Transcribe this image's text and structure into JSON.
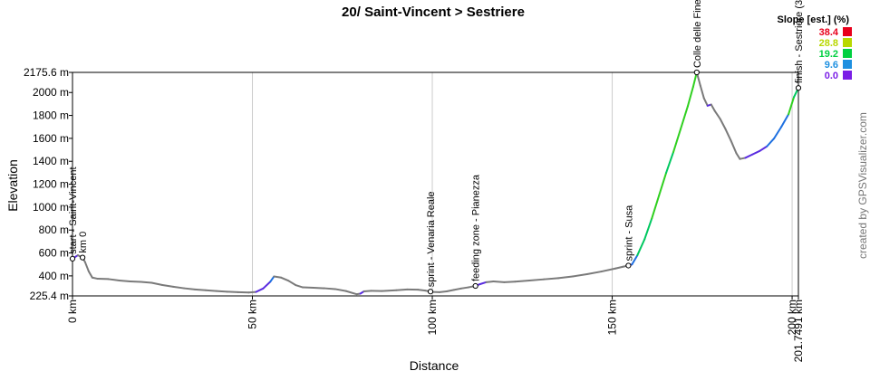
{
  "chart_data": {
    "type": "line",
    "title": "20/ Saint-Vincent > Sestriere",
    "xlabel": "Distance",
    "ylabel": "Elevation",
    "xlim": [
      0,
      201.7491
    ],
    "ylim": [
      225.4,
      2175.6
    ],
    "x_ticks": [
      {
        "value": 0,
        "label": "0 km"
      },
      {
        "value": 50,
        "label": "50 km"
      },
      {
        "value": 100,
        "label": "100 km"
      },
      {
        "value": 150,
        "label": "150 km"
      },
      {
        "value": 200,
        "label": "200 km"
      },
      {
        "value": 201.7491,
        "label": "201.7491 km"
      }
    ],
    "y_ticks": [
      {
        "value": 225.4,
        "label": "225.4 m"
      },
      {
        "value": 400,
        "label": "400 m"
      },
      {
        "value": 600,
        "label": "600 m"
      },
      {
        "value": 800,
        "label": "800 m"
      },
      {
        "value": 1000,
        "label": "1000 m"
      },
      {
        "value": 1200,
        "label": "1200 m"
      },
      {
        "value": 1400,
        "label": "1400 m"
      },
      {
        "value": 1600,
        "label": "1600 m"
      },
      {
        "value": 1800,
        "label": "1800 m"
      },
      {
        "value": 2000,
        "label": "2000 m"
      },
      {
        "value": 2175.6,
        "label": "2175.6 m"
      }
    ],
    "grid_x": [
      50,
      100,
      150,
      200
    ],
    "profile": [
      [
        0,
        550
      ],
      [
        1.5,
        580
      ],
      [
        2.8,
        560
      ],
      [
        3.5,
        520
      ],
      [
        4.5,
        440
      ],
      [
        5.5,
        385
      ],
      [
        7,
        375
      ],
      [
        10,
        372
      ],
      [
        13,
        360
      ],
      [
        16,
        352
      ],
      [
        19,
        348
      ],
      [
        22,
        340
      ],
      [
        25,
        320
      ],
      [
        28,
        305
      ],
      [
        31,
        292
      ],
      [
        34,
        282
      ],
      [
        37,
        275
      ],
      [
        40,
        268
      ],
      [
        43,
        262
      ],
      [
        46,
        258
      ],
      [
        49,
        255
      ],
      [
        51,
        260
      ],
      [
        53,
        290
      ],
      [
        55,
        350
      ],
      [
        56,
        395
      ],
      [
        58,
        385
      ],
      [
        60,
        358
      ],
      [
        62,
        320
      ],
      [
        64,
        300
      ],
      [
        67,
        296
      ],
      [
        70,
        292
      ],
      [
        73,
        285
      ],
      [
        76,
        268
      ],
      [
        79,
        240
      ],
      [
        80,
        245
      ],
      [
        81,
        265
      ],
      [
        83,
        270
      ],
      [
        86,
        268
      ],
      [
        90,
        275
      ],
      [
        93,
        282
      ],
      [
        96,
        280
      ],
      [
        98,
        272
      ],
      [
        100,
        260
      ],
      [
        102,
        258
      ],
      [
        104,
        265
      ],
      [
        106,
        278
      ],
      [
        108,
        290
      ],
      [
        110,
        300
      ],
      [
        112,
        312
      ],
      [
        113,
        325
      ],
      [
        115,
        345
      ],
      [
        117,
        352
      ],
      [
        120,
        345
      ],
      [
        123,
        350
      ],
      [
        127,
        360
      ],
      [
        131,
        370
      ],
      [
        135,
        380
      ],
      [
        139,
        395
      ],
      [
        143,
        415
      ],
      [
        147,
        438
      ],
      [
        151,
        465
      ],
      [
        153,
        480
      ],
      [
        154.5,
        490
      ],
      [
        155.5,
        500
      ],
      [
        157,
        580
      ],
      [
        159,
        720
      ],
      [
        161,
        900
      ],
      [
        163,
        1100
      ],
      [
        165,
        1300
      ],
      [
        167,
        1480
      ],
      [
        169,
        1680
      ],
      [
        171,
        1880
      ],
      [
        172.5,
        2050
      ],
      [
        173.5,
        2175.6
      ],
      [
        174.5,
        2060
      ],
      [
        175.5,
        1950
      ],
      [
        176.5,
        1885
      ],
      [
        177.5,
        1895
      ],
      [
        178.5,
        1840
      ],
      [
        180,
        1770
      ],
      [
        181.5,
        1680
      ],
      [
        183,
        1580
      ],
      [
        184.5,
        1470
      ],
      [
        185.5,
        1420
      ],
      [
        187,
        1430
      ],
      [
        189,
        1460
      ],
      [
        191,
        1490
      ],
      [
        193,
        1530
      ],
      [
        195,
        1600
      ],
      [
        197,
        1700
      ],
      [
        199,
        1810
      ],
      [
        200.5,
        1960
      ],
      [
        201.7491,
        2040
      ]
    ],
    "waypoints": [
      {
        "x": 0,
        "label": "start - Saint-Vincent"
      },
      {
        "x": 2.8,
        "label": "km 0"
      },
      {
        "x": 99.5,
        "label": "sprint - Venaria Reale"
      },
      {
        "x": 112,
        "label": "feeding zone - Pianezza"
      },
      {
        "x": 154.5,
        "label": "sprint - Susa"
      },
      {
        "x": 173.5,
        "label": "Colle delle Finestre"
      },
      {
        "x": 201.7491,
        "label": "finish - Sestriere (3"
      }
    ],
    "legend": {
      "title": "Slope [est.] (%)",
      "placement": "top-right",
      "entries": [
        {
          "value": "38.4",
          "color": "#e8001c"
        },
        {
          "value": "28.8",
          "color": "#b8d800"
        },
        {
          "value": "19.2",
          "color": "#00d040"
        },
        {
          "value": "9.6",
          "color": "#1e90e0"
        },
        {
          "value": "0.0",
          "color": "#7a1ee6"
        }
      ]
    },
    "slope_colors": {
      "flat": "#7a7a7a",
      "slight": "#5a2ce0",
      "moderate": "#1e70e0",
      "steep": "#00c860",
      "very_steep": "#30d020"
    }
  },
  "credit": "created by GPSVisualizer.com"
}
